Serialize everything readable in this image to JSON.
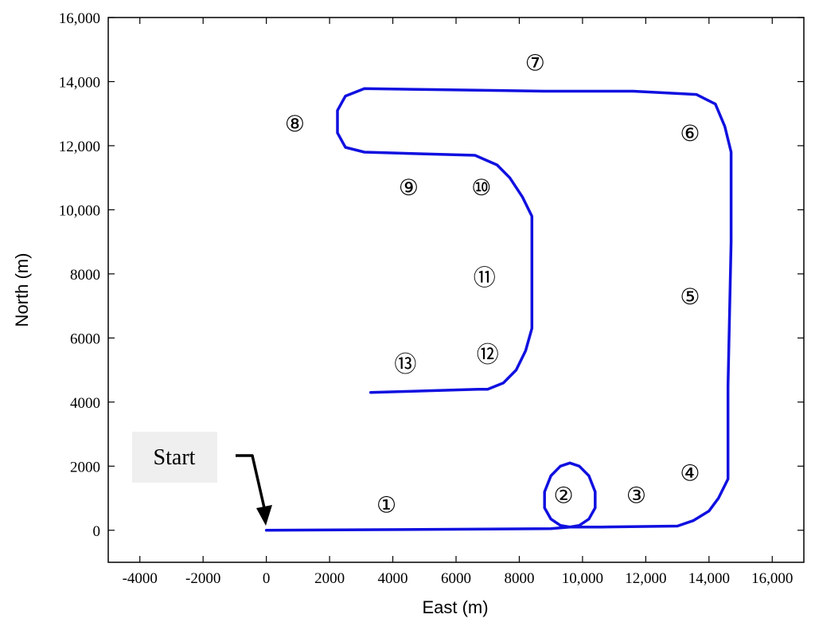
{
  "chart_data": {
    "type": "line",
    "title": "",
    "xlabel": "East (m)",
    "ylabel": "North (m)",
    "xlim": [
      -5000,
      17000
    ],
    "ylim": [
      -1000,
      16000
    ],
    "x_ticks": [
      -4000,
      -2000,
      0,
      2000,
      4000,
      6000,
      8000,
      10000,
      12000,
      14000,
      16000
    ],
    "x_tick_labels": [
      "-4000",
      "-2000",
      "0",
      "2000",
      "4000",
      "6000",
      "8000",
      "10,000",
      "12,000",
      "14,000",
      "16,000"
    ],
    "y_ticks": [
      0,
      2000,
      4000,
      6000,
      8000,
      10000,
      12000,
      14000,
      16000
    ],
    "y_tick_labels": [
      "0",
      "2000",
      "4000",
      "6000",
      "8000",
      "10,000",
      "12,000",
      "14,000",
      "16,000"
    ],
    "grid": false,
    "series": [
      {
        "color": "#1010e0",
        "x": [
          0,
          9000,
          9600,
          9900,
          10200,
          10400,
          10400,
          10200,
          9900,
          9600,
          9300,
          9000,
          8800,
          8800,
          9000,
          9300,
          9600,
          9900,
          10600,
          13000,
          13500,
          14000,
          14300,
          14600,
          14600,
          14700,
          14700,
          14500,
          14200,
          13600,
          13000,
          11600,
          8800,
          5300,
          3100,
          2500,
          2250,
          2250,
          2500,
          3100,
          4800,
          6600,
          7300,
          7700,
          8100,
          8400,
          8400,
          8200,
          7900,
          7500,
          7000,
          6700,
          4400,
          3300
        ],
        "y": [
          0,
          50,
          100,
          150,
          350,
          700,
          1200,
          1700,
          2000,
          2100,
          2000,
          1700,
          1200,
          700,
          350,
          150,
          100,
          100,
          100,
          130,
          300,
          600,
          1000,
          1600,
          4500,
          9000,
          11800,
          12600,
          13300,
          13600,
          13630,
          13700,
          13700,
          13750,
          13780,
          13550,
          13100,
          12400,
          11950,
          11800,
          11750,
          11700,
          11400,
          11000,
          10400,
          9800,
          6300,
          5600,
          5000,
          4600,
          4400,
          4400,
          4330,
          4300
        ]
      }
    ],
    "annotations": [
      {
        "text": "①",
        "x": 3800,
        "y": 800
      },
      {
        "text": "②",
        "x": 9400,
        "y": 1100
      },
      {
        "text": "③",
        "x": 11700,
        "y": 1100
      },
      {
        "text": "④",
        "x": 13400,
        "y": 1800
      },
      {
        "text": "⑤",
        "x": 13400,
        "y": 7300
      },
      {
        "text": "⑥",
        "x": 13400,
        "y": 12400
      },
      {
        "text": "⑦",
        "x": 8500,
        "y": 14600
      },
      {
        "text": "⑧",
        "x": 900,
        "y": 12700
      },
      {
        "text": "⑨",
        "x": 4500,
        "y": 10700
      },
      {
        "text": "⑩",
        "x": 6800,
        "y": 10700
      },
      {
        "text": "⑪",
        "x": 6900,
        "y": 7900
      },
      {
        "text": "⑫",
        "x": 7000,
        "y": 5500
      },
      {
        "text": "⑬",
        "x": 4400,
        "y": 5200
      }
    ],
    "start_label": "Start"
  }
}
